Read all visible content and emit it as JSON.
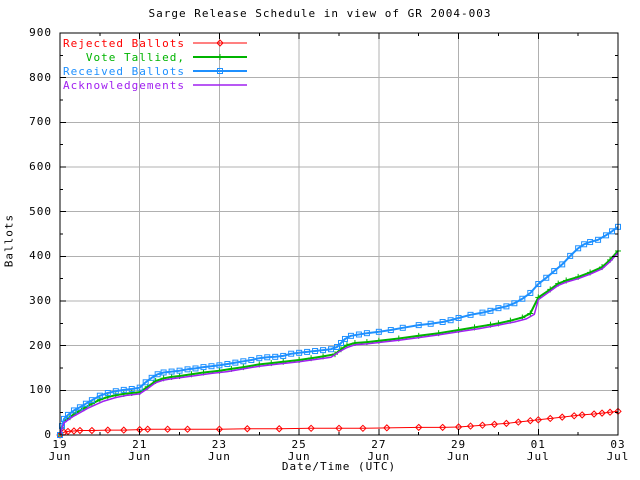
{
  "window": {
    "background": "#ffffff"
  },
  "chart_data": {
    "type": "line",
    "title": "Sarge Release Schedule in view of GR 2004-003",
    "xlabel": "Date/Time (UTC)",
    "ylabel": "Ballots",
    "ylim": [
      0,
      900
    ],
    "xlim_days": [
      0,
      14
    ],
    "grid": true,
    "grid_color": "#b0b0b0",
    "axis_color": "#000000",
    "background": "#ffffff",
    "legend_position": "top-left-inside",
    "y_major_ticks": [
      0,
      100,
      200,
      300,
      400,
      500,
      600,
      700,
      800,
      900
    ],
    "y_minor_step": 50,
    "x_major_ticks": [
      {
        "day": 0,
        "line1": "19",
        "line2": "Jun"
      },
      {
        "day": 2,
        "line1": "21",
        "line2": "Jun"
      },
      {
        "day": 4,
        "line1": "23",
        "line2": "Jun"
      },
      {
        "day": 6,
        "line1": "25",
        "line2": "Jun"
      },
      {
        "day": 8,
        "line1": "27",
        "line2": "Jun"
      },
      {
        "day": 10,
        "line1": "29",
        "line2": "Jun"
      },
      {
        "day": 12,
        "line1": "01",
        "line2": "Jul"
      },
      {
        "day": 14,
        "line1": "03",
        "line2": "Jul"
      }
    ],
    "x_minor_days": [
      1,
      3,
      5,
      7,
      9,
      11,
      13
    ],
    "series": [
      {
        "name": "Rejected Ballots",
        "color": "#ff0000",
        "marker": "diamond",
        "linewidth": 1,
        "points": [
          [
            0,
            0
          ],
          [
            0.1,
            6
          ],
          [
            0.2,
            8
          ],
          [
            0.35,
            9
          ],
          [
            0.5,
            10
          ],
          [
            0.8,
            10
          ],
          [
            1.2,
            11
          ],
          [
            1.6,
            11
          ],
          [
            2.0,
            12
          ],
          [
            2.2,
            13
          ],
          [
            2.7,
            13
          ],
          [
            3.2,
            13
          ],
          [
            4.0,
            13
          ],
          [
            4.7,
            14
          ],
          [
            5.5,
            14
          ],
          [
            6.3,
            15
          ],
          [
            7.0,
            15
          ],
          [
            7.6,
            15
          ],
          [
            8.2,
            16
          ],
          [
            9.0,
            17
          ],
          [
            9.6,
            17
          ],
          [
            10.0,
            18
          ],
          [
            10.3,
            20
          ],
          [
            10.6,
            22
          ],
          [
            10.9,
            24
          ],
          [
            11.2,
            26
          ],
          [
            11.5,
            29
          ],
          [
            11.8,
            32
          ],
          [
            12.0,
            34
          ],
          [
            12.3,
            37
          ],
          [
            12.6,
            40
          ],
          [
            12.9,
            43
          ],
          [
            13.1,
            45
          ],
          [
            13.4,
            47
          ],
          [
            13.6,
            49
          ],
          [
            13.8,
            51
          ],
          [
            14.0,
            53
          ]
        ]
      },
      {
        "name": "Vote Tallied,",
        "color": "#00b400",
        "marker": "plus",
        "linewidth": 2,
        "points": [
          [
            0,
            0
          ],
          [
            0.05,
            16
          ],
          [
            0.1,
            30
          ],
          [
            0.25,
            40
          ],
          [
            0.4,
            50
          ],
          [
            0.6,
            60
          ],
          [
            0.8,
            70
          ],
          [
            1.0,
            79
          ],
          [
            1.2,
            85
          ],
          [
            1.4,
            89
          ],
          [
            1.6,
            92
          ],
          [
            1.8,
            94
          ],
          [
            2.0,
            96
          ],
          [
            2.2,
            108
          ],
          [
            2.4,
            121
          ],
          [
            2.6,
            127
          ],
          [
            2.8,
            130
          ],
          [
            3.0,
            132
          ],
          [
            3.3,
            136
          ],
          [
            3.6,
            140
          ],
          [
            4.0,
            144
          ],
          [
            4.3,
            148
          ],
          [
            4.6,
            152
          ],
          [
            5.0,
            158
          ],
          [
            5.3,
            161
          ],
          [
            5.6,
            164
          ],
          [
            6.0,
            168
          ],
          [
            6.3,
            172
          ],
          [
            6.6,
            176
          ],
          [
            6.9,
            181
          ],
          [
            7.05,
            192
          ],
          [
            7.2,
            201
          ],
          [
            7.4,
            206
          ],
          [
            7.7,
            208
          ],
          [
            8.0,
            211
          ],
          [
            8.5,
            216
          ],
          [
            9.0,
            222
          ],
          [
            9.5,
            228
          ],
          [
            10.0,
            235
          ],
          [
            10.4,
            241
          ],
          [
            10.8,
            247
          ],
          [
            11.0,
            250
          ],
          [
            11.3,
            256
          ],
          [
            11.6,
            263
          ],
          [
            11.8,
            272
          ],
          [
            12.0,
            308
          ],
          [
            12.3,
            326
          ],
          [
            12.5,
            339
          ],
          [
            12.7,
            346
          ],
          [
            13.0,
            354
          ],
          [
            13.3,
            364
          ],
          [
            13.6,
            376
          ],
          [
            13.8,
            392
          ],
          [
            14.0,
            412
          ]
        ]
      },
      {
        "name": "Received Ballots",
        "color": "#1e90ff",
        "marker": "square",
        "linewidth": 2,
        "points": [
          [
            0,
            0
          ],
          [
            0.05,
            20
          ],
          [
            0.1,
            36
          ],
          [
            0.2,
            45
          ],
          [
            0.35,
            55
          ],
          [
            0.5,
            62
          ],
          [
            0.65,
            70
          ],
          [
            0.8,
            78
          ],
          [
            1.0,
            88
          ],
          [
            1.2,
            94
          ],
          [
            1.4,
            98
          ],
          [
            1.6,
            101
          ],
          [
            1.8,
            103
          ],
          [
            2.0,
            106
          ],
          [
            2.15,
            118
          ],
          [
            2.3,
            128
          ],
          [
            2.45,
            136
          ],
          [
            2.6,
            140
          ],
          [
            2.8,
            142
          ],
          [
            3.0,
            144
          ],
          [
            3.2,
            147
          ],
          [
            3.4,
            149
          ],
          [
            3.6,
            152
          ],
          [
            3.8,
            154
          ],
          [
            4.0,
            156
          ],
          [
            4.2,
            159
          ],
          [
            4.4,
            162
          ],
          [
            4.6,
            165
          ],
          [
            4.8,
            168
          ],
          [
            5.0,
            172
          ],
          [
            5.2,
            174
          ],
          [
            5.4,
            175
          ],
          [
            5.6,
            177
          ],
          [
            5.8,
            182
          ],
          [
            6.0,
            184
          ],
          [
            6.2,
            186
          ],
          [
            6.4,
            188
          ],
          [
            6.6,
            190
          ],
          [
            6.8,
            192
          ],
          [
            6.95,
            197
          ],
          [
            7.05,
            206
          ],
          [
            7.15,
            215
          ],
          [
            7.3,
            222
          ],
          [
            7.5,
            225
          ],
          [
            7.7,
            228
          ],
          [
            8.0,
            231
          ],
          [
            8.3,
            235
          ],
          [
            8.6,
            240
          ],
          [
            9.0,
            246
          ],
          [
            9.3,
            249
          ],
          [
            9.6,
            253
          ],
          [
            9.8,
            257
          ],
          [
            10.0,
            262
          ],
          [
            10.3,
            269
          ],
          [
            10.6,
            274
          ],
          [
            10.8,
            278
          ],
          [
            11.0,
            284
          ],
          [
            11.2,
            288
          ],
          [
            11.4,
            295
          ],
          [
            11.6,
            305
          ],
          [
            11.8,
            318
          ],
          [
            12.0,
            338
          ],
          [
            12.2,
            352
          ],
          [
            12.4,
            367
          ],
          [
            12.6,
            382
          ],
          [
            12.8,
            401
          ],
          [
            13.0,
            418
          ],
          [
            13.15,
            427
          ],
          [
            13.3,
            432
          ],
          [
            13.5,
            437
          ],
          [
            13.7,
            447
          ],
          [
            13.85,
            456
          ],
          [
            14.0,
            466
          ]
        ]
      },
      {
        "name": "Acknowledgements",
        "color": "#a020f0",
        "marker": "none",
        "linewidth": 1.5,
        "points": [
          [
            0,
            0
          ],
          [
            0.05,
            14
          ],
          [
            0.1,
            27
          ],
          [
            0.3,
            40
          ],
          [
            0.5,
            50
          ],
          [
            0.7,
            60
          ],
          [
            0.9,
            68
          ],
          [
            1.1,
            76
          ],
          [
            1.4,
            84
          ],
          [
            1.7,
            89
          ],
          [
            2.0,
            92
          ],
          [
            2.2,
            104
          ],
          [
            2.4,
            117
          ],
          [
            2.6,
            123
          ],
          [
            2.8,
            126
          ],
          [
            3.0,
            128
          ],
          [
            3.4,
            133
          ],
          [
            3.8,
            138
          ],
          [
            4.2,
            142
          ],
          [
            4.6,
            148
          ],
          [
            5.0,
            154
          ],
          [
            5.4,
            158
          ],
          [
            6.0,
            164
          ],
          [
            6.4,
            169
          ],
          [
            6.8,
            174
          ],
          [
            7.0,
            186
          ],
          [
            7.2,
            196
          ],
          [
            7.4,
            202
          ],
          [
            7.7,
            204
          ],
          [
            8.0,
            207
          ],
          [
            8.5,
            212
          ],
          [
            9.0,
            218
          ],
          [
            9.5,
            224
          ],
          [
            10.0,
            231
          ],
          [
            10.5,
            238
          ],
          [
            11.0,
            246
          ],
          [
            11.4,
            253
          ],
          [
            11.7,
            260
          ],
          [
            11.9,
            270
          ],
          [
            12.0,
            303
          ],
          [
            12.3,
            322
          ],
          [
            12.5,
            335
          ],
          [
            12.7,
            342
          ],
          [
            13.0,
            350
          ],
          [
            13.3,
            360
          ],
          [
            13.6,
            372
          ],
          [
            13.8,
            388
          ],
          [
            14.0,
            408
          ]
        ]
      }
    ]
  }
}
